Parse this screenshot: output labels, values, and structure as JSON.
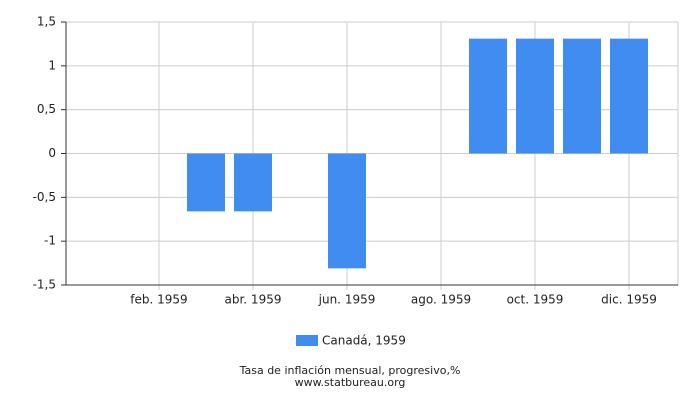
{
  "chart_data": {
    "type": "bar",
    "caption": "Tasa de inflación mensual, progresivo,%",
    "source": "www.statbureau.org",
    "categories": [
      null,
      "feb. 1959",
      null,
      "abr. 1959",
      null,
      "jun. 1959",
      null,
      "ago. 1959",
      null,
      "oct. 1959",
      null,
      "dic. 1959"
    ],
    "series": [
      {
        "name": "Canadá, 1959",
        "color": "#418cf0",
        "values": [
          0,
          0,
          -0.66,
          -0.66,
          0,
          -1.31,
          0,
          0,
          1.31,
          1.31,
          1.31,
          1.31
        ]
      }
    ],
    "ylim": [
      -1.5,
      1.5
    ],
    "yticks": [
      {
        "value": 1.5,
        "label": "1,5"
      },
      1,
      {
        "value": 0.5,
        "label": "0,5"
      },
      0,
      {
        "value": -0.5,
        "label": "-0,5"
      },
      -1,
      {
        "value": -1.5,
        "label": "-1,5"
      }
    ],
    "grid": true
  }
}
